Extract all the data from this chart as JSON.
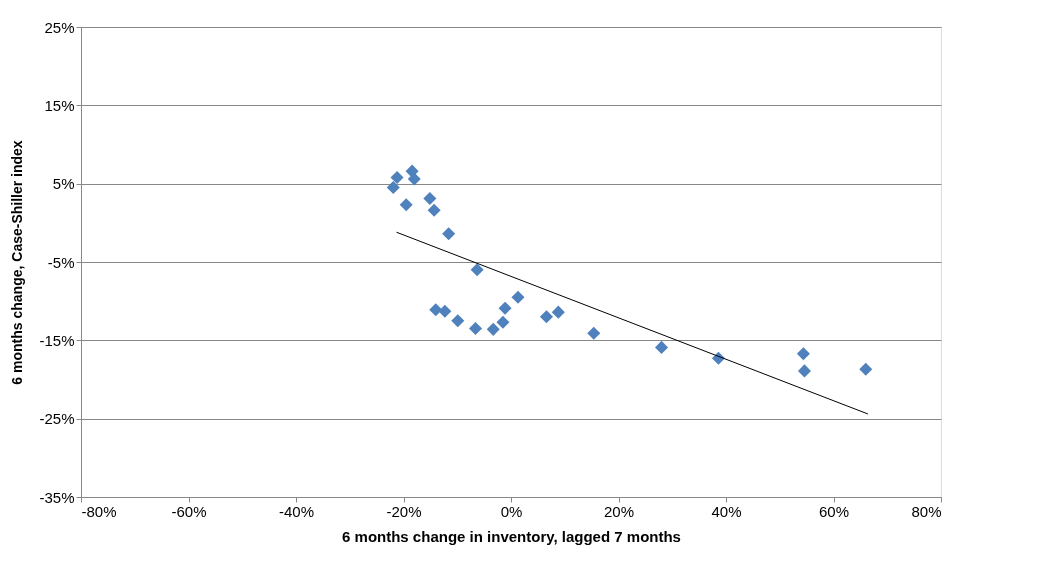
{
  "chart_data": {
    "type": "scatter",
    "xlabel": "6 months change in inventory, lagged 7 months",
    "ylabel": "6 months change, Case-Shiller index",
    "xlim": [
      -80,
      80
    ],
    "ylim": [
      -35,
      25
    ],
    "xticks": [
      {
        "value": -80,
        "label": "-80%"
      },
      {
        "value": -60,
        "label": "-60%"
      },
      {
        "value": -40,
        "label": "-40%"
      },
      {
        "value": -20,
        "label": "-20%"
      },
      {
        "value": 0,
        "label": "0%"
      },
      {
        "value": 20,
        "label": "20%"
      },
      {
        "value": 40,
        "label": "40%"
      },
      {
        "value": 60,
        "label": "60%"
      },
      {
        "value": 80,
        "label": "80%"
      }
    ],
    "yticks": [
      {
        "value": -35,
        "label": "-35%"
      },
      {
        "value": -25,
        "label": "-25%"
      },
      {
        "value": -15,
        "label": "-15%"
      },
      {
        "value": -5,
        "label": "-5%"
      },
      {
        "value": 5,
        "label": "5%"
      },
      {
        "value": 15,
        "label": "15%"
      },
      {
        "value": 25,
        "label": "25%"
      }
    ],
    "grid": "y",
    "series": [
      {
        "color": "#4f81bd",
        "marker": "diamond",
        "x": [
          -21.9,
          -21.2,
          -18.4,
          -18.0,
          -19.5,
          -15.1,
          -14.3,
          -11.6,
          -6.3,
          -14.0,
          -12.3,
          -9.9,
          -6.6,
          -3.3,
          -1.5,
          -1.1,
          1.3,
          6.6,
          8.8,
          15.4,
          28.0,
          38.6,
          54.4,
          54.6,
          66.0
        ],
        "values": [
          4.5,
          5.8,
          6.6,
          5.6,
          2.3,
          3.1,
          1.6,
          -1.4,
          -6.0,
          -11.1,
          -11.3,
          -12.5,
          -13.5,
          -13.6,
          -12.7,
          -10.9,
          -9.5,
          -12.0,
          -11.4,
          -14.1,
          -15.9,
          -17.3,
          -16.7,
          -18.9,
          -18.7
        ]
      },
      {
        "type": "line",
        "color": "#000000",
        "marker": "none",
        "x": [
          -21.3,
          66.4
        ],
        "values": [
          -1.2,
          -24.4
        ]
      }
    ]
  }
}
